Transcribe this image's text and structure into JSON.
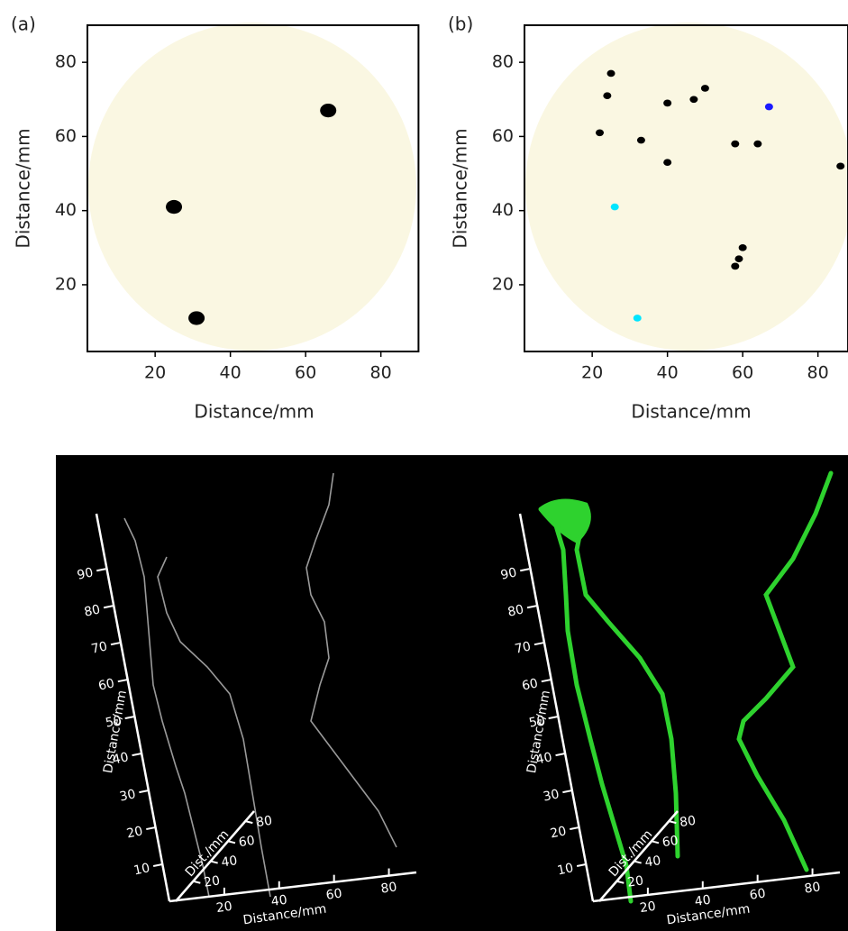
{
  "chart_data": [
    {
      "type": "scatter",
      "panel_label": "(a)",
      "x_label": "Distance/mm",
      "y_label": "Distance/mm",
      "xlim": [
        2,
        90
      ],
      "ylim": [
        2,
        90
      ],
      "xticks": [
        20,
        40,
        60,
        80
      ],
      "yticks": [
        20,
        40,
        60,
        80
      ],
      "series": [
        {
          "color": "#000000",
          "x": [
            25,
            31,
            66
          ],
          "y": [
            41,
            11,
            67
          ]
        }
      ]
    },
    {
      "type": "scatter",
      "panel_label": "(b)",
      "x_label": "Distance/mm",
      "y_label": "Distance/mm",
      "xlim": [
        2,
        88
      ],
      "ylim": [
        2,
        90
      ],
      "xticks": [
        20,
        40,
        60,
        80
      ],
      "yticks": [
        20,
        40,
        60,
        80
      ],
      "series": [
        {
          "color": "#000000",
          "x": [
            25,
            24,
            22,
            33,
            40,
            40,
            47,
            50,
            58,
            64,
            86,
            60,
            59,
            58
          ],
          "y": [
            77,
            71,
            61,
            59,
            69,
            53,
            70,
            73,
            58,
            58,
            52,
            30,
            27,
            25
          ]
        },
        {
          "color": "#1a1aff",
          "x": [
            67
          ],
          "y": [
            68
          ]
        },
        {
          "color": "#00e5ff",
          "x": [
            26,
            32
          ],
          "y": [
            41,
            11
          ]
        }
      ]
    }
  ],
  "renderings": [
    {
      "z_ticks": [
        10,
        20,
        30,
        40,
        50,
        60,
        70,
        80,
        90
      ],
      "z_label": "Distance/mm",
      "x_ticks": [
        20,
        40,
        60,
        80
      ],
      "x_label": "Distance/mm",
      "depth_ticks": [
        20,
        40,
        60,
        80
      ],
      "depth_label": "Dist./mm"
    },
    {
      "z_ticks": [
        10,
        20,
        30,
        40,
        50,
        60,
        70,
        80,
        90
      ],
      "z_label": "Distance/mm",
      "x_ticks": [
        20,
        40,
        60,
        80
      ],
      "x_label": "Distance/mm",
      "depth_ticks": [
        20,
        40,
        60,
        80
      ],
      "depth_label": "Dist./mm"
    }
  ]
}
